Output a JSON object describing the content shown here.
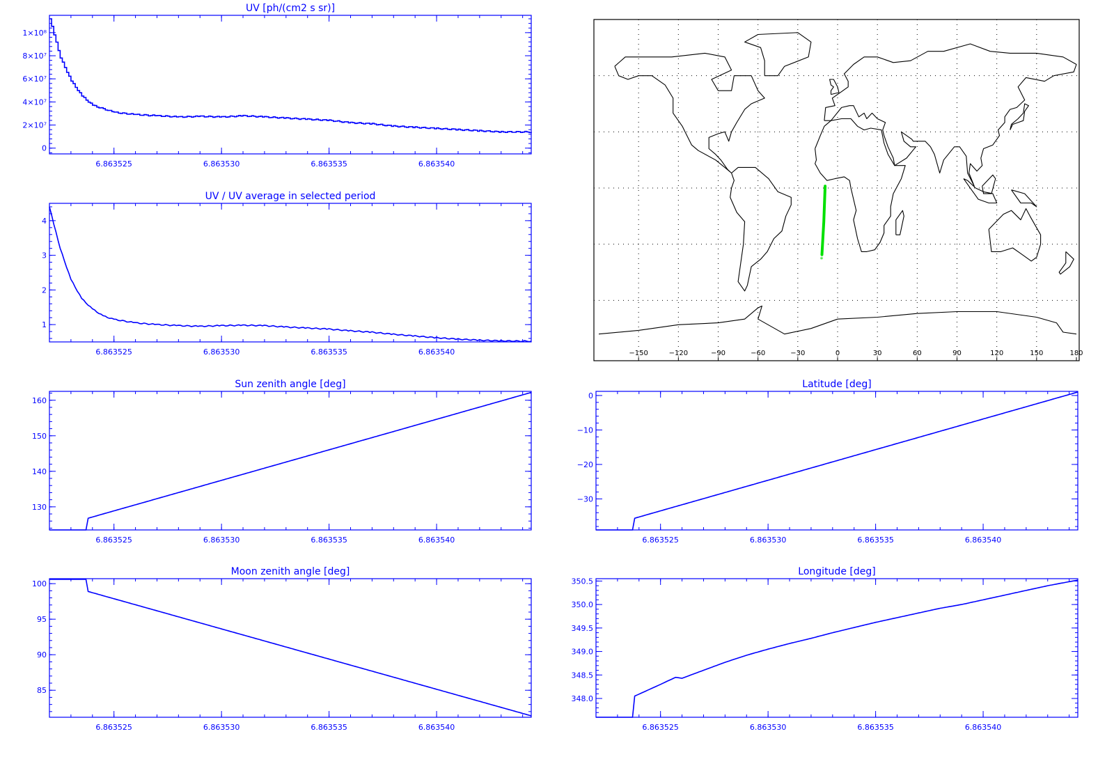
{
  "chart_data": [
    {
      "id": "uv",
      "type": "line",
      "title": "UV [ph/(cm2 s sr)]",
      "xlabel": "",
      "ylabel": "",
      "xlim": [
        6.863522,
        6.8635444
      ],
      "ylim": [
        -5000000,
        115000000
      ],
      "xticks": [
        6.863525,
        6.86353,
        6.863535,
        6.86354
      ],
      "xtick_labels": [
        "6.863525",
        "6.863530",
        "6.863535",
        "6.863540"
      ],
      "yticks": [
        0,
        20000000,
        40000000,
        60000000,
        80000000,
        100000000
      ],
      "ytick_labels": [
        "0",
        "2×10⁷",
        "4×10⁷",
        "6×10⁷",
        "8×10⁷",
        "1×10⁸"
      ],
      "color": "#0000ff",
      "grid": false,
      "series": [
        {
          "x": [
            6.863522,
            6.8635222,
            6.8635225,
            6.863523,
            6.8635235,
            6.863524,
            6.863525,
            6.863526,
            6.863527,
            6.863528,
            6.863529,
            6.86353,
            6.863531,
            6.863532,
            6.863533,
            6.863534,
            6.863535,
            6.863536,
            6.863537,
            6.863538,
            6.863539,
            6.86354,
            6.863541,
            6.863542,
            6.863543,
            6.8635444
          ],
          "y": [
            112000000,
            98000000,
            78000000,
            58000000,
            45000000,
            37000000,
            31000000,
            29000000,
            28000000,
            27000000,
            27500000,
            27000000,
            28000000,
            27000000,
            26000000,
            25000000,
            24000000,
            22000000,
            21000000,
            19000000,
            18000000,
            17000000,
            16000000,
            15000000,
            14000000,
            14000000
          ]
        }
      ]
    },
    {
      "id": "ratio",
      "type": "line",
      "title": "UV / UV average in selected period",
      "xlabel": "",
      "ylabel": "",
      "xlim": [
        6.863522,
        6.8635444
      ],
      "ylim": [
        0.5,
        4.5
      ],
      "xticks": [
        6.863525,
        6.86353,
        6.863535,
        6.86354
      ],
      "xtick_labels": [
        "6.863525",
        "6.863530",
        "6.863535",
        "6.863540"
      ],
      "yticks": [
        1,
        2,
        3,
        4
      ],
      "ytick_labels": [
        "1",
        "2",
        "3",
        "4"
      ],
      "color": "#0000ff",
      "grid": false,
      "series": [
        {
          "x": [
            6.863522,
            6.8635222,
            6.8635225,
            6.863523,
            6.8635235,
            6.863524,
            6.8635245,
            6.863525,
            6.863526,
            6.863527,
            6.863528,
            6.863529,
            6.86353,
            6.863531,
            6.863532,
            6.863533,
            6.863534,
            6.863535,
            6.863536,
            6.863537,
            6.863538,
            6.863539,
            6.86354,
            6.863541,
            6.863542,
            6.863543,
            6.8635444
          ],
          "y": [
            4.4,
            3.9,
            3.2,
            2.3,
            1.75,
            1.45,
            1.25,
            1.15,
            1.05,
            1.0,
            0.97,
            0.95,
            0.97,
            0.98,
            0.97,
            0.93,
            0.9,
            0.87,
            0.82,
            0.78,
            0.72,
            0.67,
            0.62,
            0.58,
            0.55,
            0.53,
            0.52
          ]
        }
      ]
    },
    {
      "id": "sza",
      "type": "line",
      "title": "Sun zenith angle [deg]",
      "xlabel": "",
      "ylabel": "",
      "xlim": [
        6.863522,
        6.8635444
      ],
      "ylim": [
        123.5,
        162.5
      ],
      "xticks": [
        6.863525,
        6.86353,
        6.863535,
        6.86354
      ],
      "xtick_labels": [
        "6.863525",
        "6.863530",
        "6.863535",
        "6.863540"
      ],
      "yticks": [
        130,
        140,
        150,
        160
      ],
      "ytick_labels": [
        "130",
        "140",
        "150",
        "160"
      ],
      "color": "#0000ff",
      "grid": false,
      "series": [
        {
          "x": [
            6.863522,
            6.8635237,
            6.8635238,
            6.8635444
          ],
          "y": [
            123.5,
            123.5,
            126.8,
            162.2
          ]
        }
      ]
    },
    {
      "id": "mza",
      "type": "line",
      "title": "Moon zenith angle [deg]",
      "xlabel": "",
      "ylabel": "",
      "xlim": [
        6.863522,
        6.8635444
      ],
      "ylim": [
        81.2,
        100.7
      ],
      "xticks": [
        6.863525,
        6.86353,
        6.863535,
        6.86354
      ],
      "xtick_labels": [
        "6.863525",
        "6.863530",
        "6.863535",
        "6.863540"
      ],
      "yticks": [
        85,
        90,
        95,
        100
      ],
      "ytick_labels": [
        "85",
        "90",
        "95",
        "100"
      ],
      "color": "#0000ff",
      "grid": false,
      "series": [
        {
          "x": [
            6.863522,
            6.8635237,
            6.8635238,
            6.8635444
          ],
          "y": [
            100.6,
            100.6,
            98.9,
            81.4
          ]
        }
      ]
    },
    {
      "id": "lat",
      "type": "line",
      "title": "Latitude [deg]",
      "xlabel": "",
      "ylabel": "",
      "xlim": [
        6.863522,
        6.8635444
      ],
      "ylim": [
        -39,
        1.2
      ],
      "xticks": [
        6.863525,
        6.86353,
        6.863535,
        6.86354
      ],
      "xtick_labels": [
        "6.863525",
        "6.863530",
        "6.863535",
        "6.863540"
      ],
      "yticks": [
        -30,
        -20,
        -10,
        0
      ],
      "ytick_labels": [
        "−30",
        "−20",
        "−10",
        "0"
      ],
      "color": "#0000ff",
      "grid": false,
      "series": [
        {
          "x": [
            6.863522,
            6.8635237,
            6.8635238,
            6.8635444
          ],
          "y": [
            -39,
            -39,
            -35.6,
            1.0
          ]
        }
      ]
    },
    {
      "id": "lon",
      "type": "line",
      "title": "Longitude [deg]",
      "xlabel": "",
      "ylabel": "",
      "xlim": [
        6.863522,
        6.8635444
      ],
      "ylim": [
        347.6,
        350.55
      ],
      "xticks": [
        6.863525,
        6.86353,
        6.863535,
        6.86354
      ],
      "xtick_labels": [
        "6.863525",
        "6.863530",
        "6.863535",
        "6.863540"
      ],
      "yticks": [
        348.0,
        348.5,
        349.0,
        349.5,
        350.0,
        350.5
      ],
      "ytick_labels": [
        "348.0",
        "348.5",
        "349.0",
        "349.5",
        "350.0",
        "350.5"
      ],
      "color": "#0000ff",
      "grid": false,
      "series": [
        {
          "x": [
            6.863522,
            6.8635237,
            6.8635238,
            6.863525,
            6.8635257,
            6.863526,
            6.863527,
            6.863528,
            6.863529,
            6.86353,
            6.863531,
            6.863532,
            6.863533,
            6.863534,
            6.863535,
            6.863536,
            6.863537,
            6.863538,
            6.863539,
            6.86354,
            6.863541,
            6.863542,
            6.863543,
            6.8635444
          ],
          "y": [
            347.6,
            347.6,
            348.05,
            348.3,
            348.45,
            348.43,
            348.6,
            348.77,
            348.92,
            349.05,
            349.17,
            349.28,
            349.4,
            349.51,
            349.62,
            349.72,
            349.82,
            349.92,
            350.0,
            350.1,
            350.2,
            350.3,
            350.4,
            350.52
          ]
        }
      ]
    }
  ],
  "map": {
    "type": "map",
    "xlim": [
      -180,
      180
    ],
    "ylim": [
      -90,
      90
    ],
    "xticks": [
      -150,
      -120,
      -90,
      -60,
      -30,
      0,
      30,
      60,
      90,
      120,
      150,
      180
    ],
    "xtick_labels": [
      "−150",
      "−120",
      "−90",
      "−60",
      "−30",
      "0",
      "30",
      "60",
      "90",
      "120",
      "150",
      "180"
    ],
    "grid_lon": [
      -150,
      -120,
      -90,
      -60,
      -30,
      0,
      30,
      60,
      90,
      120,
      150
    ],
    "grid_lat": [
      -60,
      -30,
      0,
      30,
      60
    ],
    "coast_color": "#000000",
    "track_color": "#00e000",
    "track": [
      [
        -9.4,
        1.0
      ],
      [
        -10.4,
        -18
      ],
      [
        -11.8,
        -35.6
      ]
    ]
  }
}
